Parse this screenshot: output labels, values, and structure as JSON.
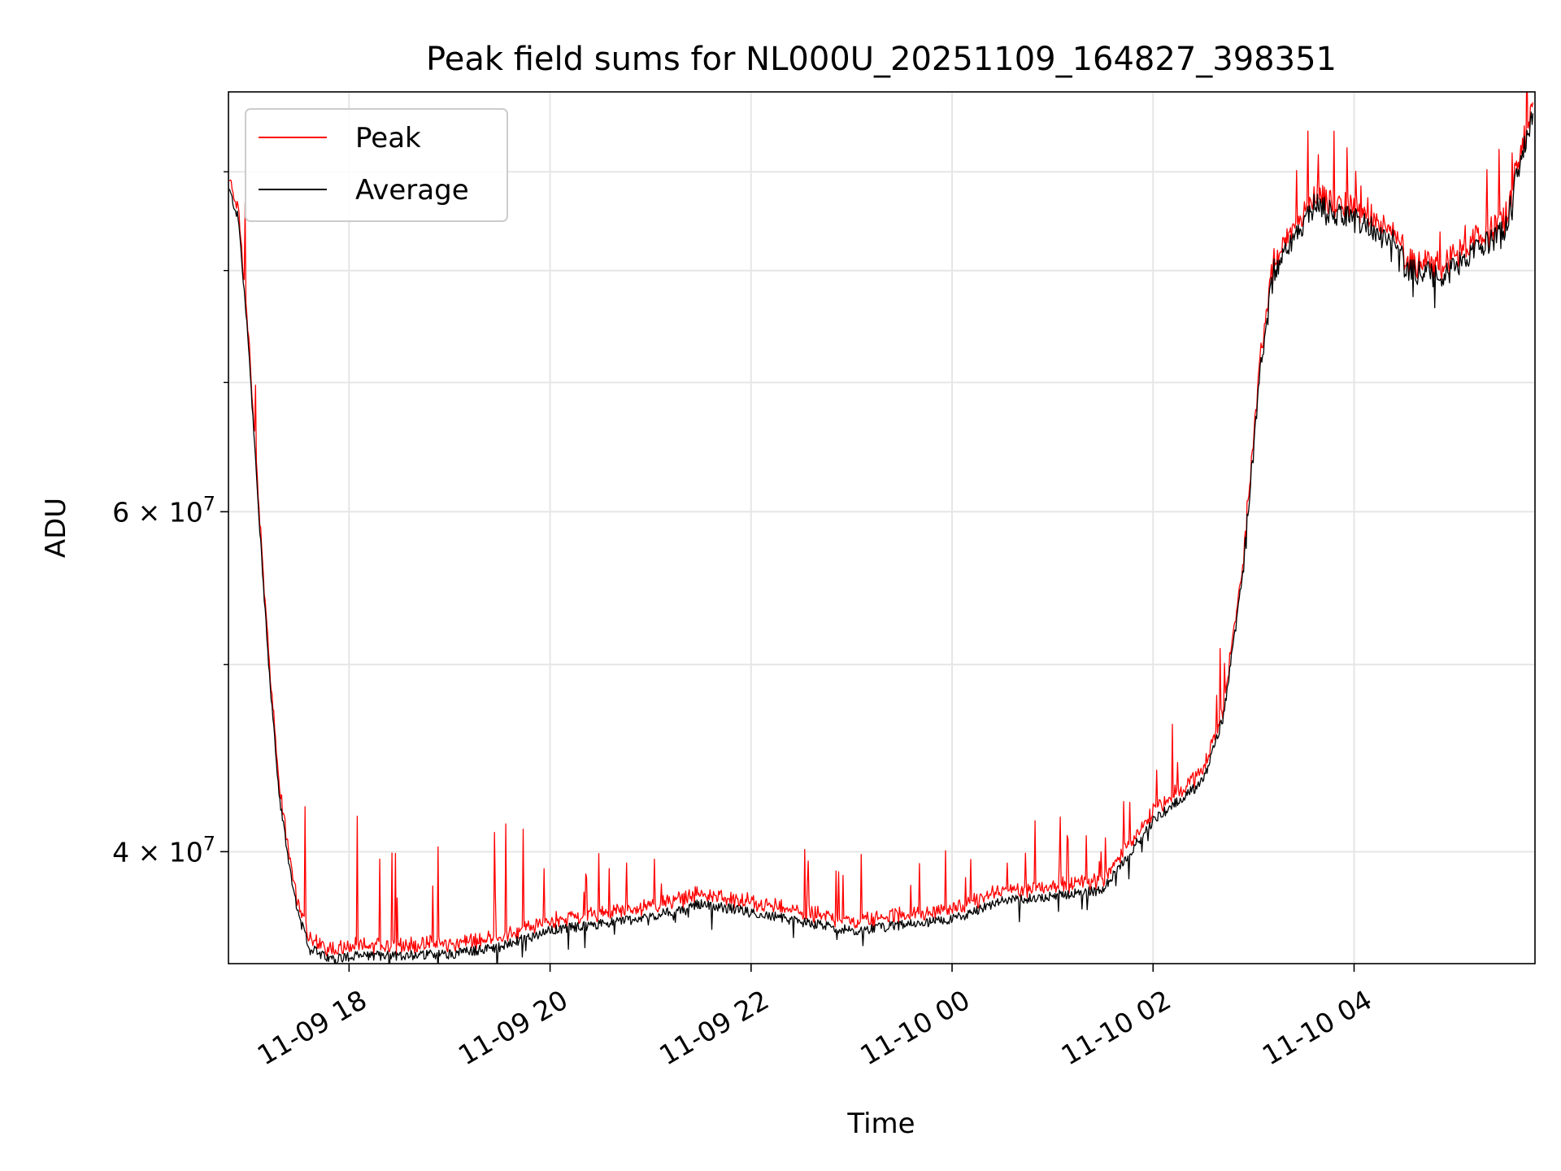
{
  "chart_data": {
    "type": "line",
    "title": "Peak field sums for NL000U_20251109_164827_398351",
    "xlabel": "Time",
    "ylabel": "ADU",
    "yscale": "log",
    "ylim": [
      35000000,
      99000000
    ],
    "xlim_hours": [
      -1.2,
      11.8
    ],
    "grid": true,
    "legend_position": "upper-left",
    "colors": {
      "peak": "#ff0000",
      "average": "#000000",
      "grid": "#e6e6e6"
    },
    "x_ticks": [
      {
        "label": "11-09 18",
        "value": 0
      },
      {
        "label": "11-09 20",
        "value": 2
      },
      {
        "label": "11-09 22",
        "value": 4
      },
      {
        "label": "11-10 00",
        "value": 6
      },
      {
        "label": "11-10 02",
        "value": 8
      },
      {
        "label": "11-10 04",
        "value": 10
      }
    ],
    "y_ticks_major": [
      {
        "label_base": "4",
        "label_exp": "7",
        "value": 40000000
      },
      {
        "label_base": "6",
        "label_exp": "7",
        "value": 60000000
      }
    ],
    "y_ticks_minor": [
      50000000,
      70000000,
      80000000,
      90000000
    ],
    "average_anchors": [
      [
        -1.19,
        88000000
      ],
      [
        -1.1,
        85000000
      ],
      [
        -1.0,
        73000000
      ],
      [
        -0.9,
        60000000
      ],
      [
        -0.8,
        50000000
      ],
      [
        -0.7,
        43000000
      ],
      [
        -0.6,
        39500000
      ],
      [
        -0.5,
        37000000
      ],
      [
        -0.4,
        35800000
      ],
      [
        -0.3,
        35400000
      ],
      [
        -0.2,
        35200000
      ],
      [
        0.0,
        35300000
      ],
      [
        1.0,
        35400000
      ],
      [
        1.5,
        35700000
      ],
      [
        2.0,
        36400000
      ],
      [
        3.0,
        37000000
      ],
      [
        3.5,
        37600000
      ],
      [
        4.0,
        37200000
      ],
      [
        5.0,
        36400000
      ],
      [
        6.0,
        36900000
      ],
      [
        6.5,
        37700000
      ],
      [
        7.5,
        38200000
      ],
      [
        8.0,
        41500000
      ],
      [
        8.5,
        43500000
      ],
      [
        8.7,
        47000000
      ],
      [
        8.9,
        56000000
      ],
      [
        9.05,
        70000000
      ],
      [
        9.2,
        80000000
      ],
      [
        9.6,
        86500000
      ],
      [
        10.0,
        85000000
      ],
      [
        10.45,
        82500000
      ],
      [
        10.5,
        80000000
      ],
      [
        10.9,
        79500000
      ],
      [
        11.5,
        84000000
      ],
      [
        11.78,
        97000000
      ]
    ],
    "series": [
      {
        "name": "Peak",
        "color": "#ff0000",
        "spike_probability": 0.04
      },
      {
        "name": "Average",
        "color": "#000000"
      }
    ]
  }
}
